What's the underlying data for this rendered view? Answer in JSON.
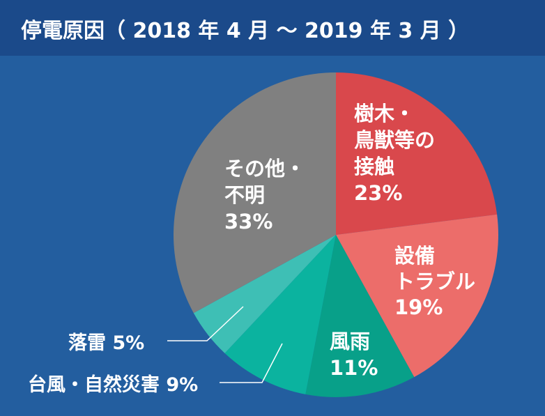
{
  "title": "停電原因（ 2018 年 4 月 〜 2019 年 3 月 ）",
  "colors": {
    "background": "#235e9f",
    "header": "#1b4a8a",
    "text": "#ffffff",
    "leader_line": "#ffffff"
  },
  "chart_data": {
    "type": "pie",
    "title": "停電原因（ 2018 年 4 月 〜 2019 年 3 月 ）",
    "slices": [
      {
        "name": "樹木・鳥獣等の接触",
        "value": 23,
        "label_lines": [
          "樹木・",
          "鳥獣等の",
          "接触",
          "23%"
        ],
        "color": "#d9484c",
        "label_position": "inside"
      },
      {
        "name": "設備トラブル",
        "value": 19,
        "label_lines": [
          "設備",
          "トラブル",
          "19%"
        ],
        "color": "#ec6d6a",
        "label_position": "inside"
      },
      {
        "name": "風雨",
        "value": 11,
        "label_lines": [
          "風雨",
          "11%"
        ],
        "color": "#08a089",
        "label_position": "inside"
      },
      {
        "name": "台風・自然災害",
        "value": 9,
        "label_lines": [
          "台風・自然災害 9%"
        ],
        "color": "#0bb39f",
        "label_position": "outside"
      },
      {
        "name": "落雷",
        "value": 5,
        "label_lines": [
          "落雷 5%"
        ],
        "color": "#3ebfb5",
        "label_position": "outside"
      },
      {
        "name": "その他・不明",
        "value": 33,
        "label_lines": [
          "その他・",
          "不明",
          "33%"
        ],
        "color": "#808080",
        "label_position": "inside"
      }
    ]
  }
}
